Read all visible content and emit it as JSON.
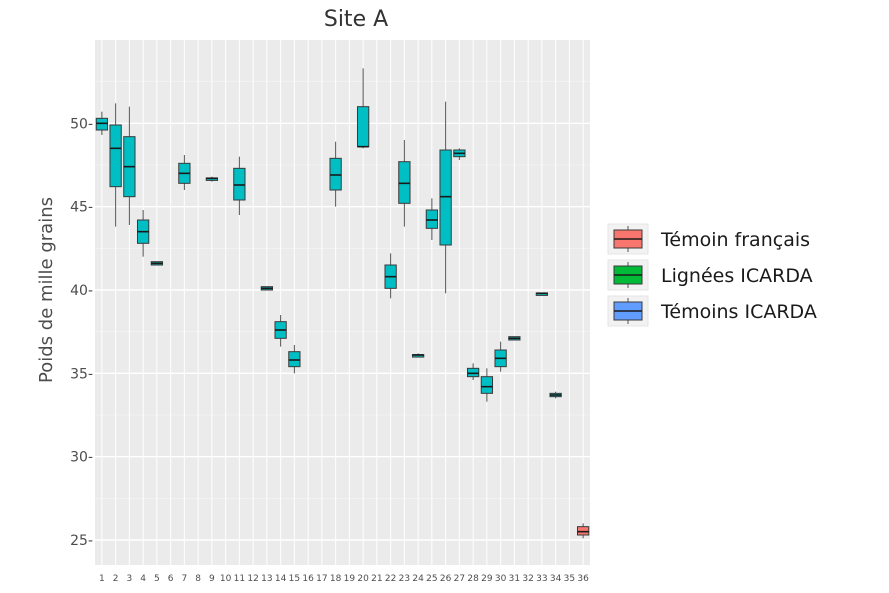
{
  "chart_data": {
    "type": "boxplot",
    "title": "Site A",
    "xlabel": "",
    "ylabel": "Poids de mille grains",
    "ylim": [
      23.5,
      55
    ],
    "yticks": [
      25,
      30,
      35,
      40,
      45,
      50
    ],
    "ytick_labels": [
      "25-",
      "30-",
      "35-",
      "40-",
      "45-",
      "50-"
    ],
    "grid": true,
    "legend_position": "right",
    "legend": [
      {
        "label": "Témoin français",
        "color": "#f8766d"
      },
      {
        "label": "Lignées ICARDA",
        "color": "#00ba38"
      },
      {
        "label": "Témoins ICARDA",
        "color": "#619cff"
      }
    ],
    "colors": {
      "lignees": "#00bfc4",
      "temoin_francais": "#f8766d",
      "panel": "#ebebeb",
      "grid": "#ffffff"
    },
    "categories": [
      "1",
      "2",
      "3",
      "4",
      "5",
      "6",
      "7",
      "8",
      "9",
      "10",
      "11",
      "12",
      "13",
      "14",
      "15",
      "16",
      "17",
      "18",
      "19",
      "20",
      "21",
      "22",
      "23",
      "24",
      "25",
      "26",
      "27",
      "28",
      "29",
      "30",
      "31",
      "32",
      "33",
      "34",
      "35",
      "36"
    ],
    "series": [
      {
        "name": "Lignées ICARDA",
        "boxes": [
          {
            "x": "1",
            "min": 49.3,
            "q1": 49.6,
            "median": 50.0,
            "q3": 50.3,
            "max": 50.7
          },
          {
            "x": "2",
            "min": 43.8,
            "q1": 46.2,
            "median": 48.5,
            "q3": 49.9,
            "max": 51.2
          },
          {
            "x": "3",
            "min": 43.9,
            "q1": 45.6,
            "median": 47.4,
            "q3": 49.2,
            "max": 51.0
          },
          {
            "x": "4",
            "min": 42.0,
            "q1": 42.8,
            "median": 43.5,
            "q3": 44.2,
            "max": 44.8
          },
          {
            "x": "5",
            "min": 41.5,
            "q1": 41.5,
            "median": 41.6,
            "q3": 41.7,
            "max": 41.7
          },
          {
            "x": "7",
            "min": 46.0,
            "q1": 46.4,
            "median": 47.0,
            "q3": 47.6,
            "max": 48.1
          },
          {
            "x": "9",
            "min": 46.5,
            "q1": 46.6,
            "median": 46.7,
            "q3": 46.7,
            "max": 46.8
          },
          {
            "x": "11",
            "min": 44.5,
            "q1": 45.4,
            "median": 46.3,
            "q3": 47.3,
            "max": 48.0
          },
          {
            "x": "13",
            "min": 40.0,
            "q1": 40.0,
            "median": 40.1,
            "q3": 40.2,
            "max": 40.2
          },
          {
            "x": "14",
            "min": 36.6,
            "q1": 37.1,
            "median": 37.6,
            "q3": 38.1,
            "max": 38.5
          },
          {
            "x": "15",
            "min": 35.0,
            "q1": 35.4,
            "median": 35.8,
            "q3": 36.3,
            "max": 36.7
          },
          {
            "x": "18",
            "min": 45.0,
            "q1": 46.0,
            "median": 46.9,
            "q3": 47.9,
            "max": 48.9
          },
          {
            "x": "20",
            "min": 48.5,
            "q1": 48.6,
            "median": 48.6,
            "q3": 51.0,
            "max": 53.3
          },
          {
            "x": "22",
            "min": 39.5,
            "q1": 40.1,
            "median": 40.8,
            "q3": 41.5,
            "max": 42.2
          },
          {
            "x": "23",
            "min": 43.8,
            "q1": 45.2,
            "median": 46.4,
            "q3": 47.7,
            "max": 49.0
          },
          {
            "x": "24",
            "min": 36.0,
            "q1": 36.0,
            "median": 36.1,
            "q3": 36.1,
            "max": 36.2
          },
          {
            "x": "25",
            "min": 43.0,
            "q1": 43.7,
            "median": 44.2,
            "q3": 44.8,
            "max": 45.5
          },
          {
            "x": "26",
            "min": 39.8,
            "q1": 42.7,
            "median": 45.6,
            "q3": 48.4,
            "max": 51.3
          },
          {
            "x": "27",
            "min": 47.8,
            "q1": 48.0,
            "median": 48.2,
            "q3": 48.4,
            "max": 48.5
          },
          {
            "x": "28",
            "min": 34.6,
            "q1": 34.8,
            "median": 35.0,
            "q3": 35.3,
            "max": 35.6
          },
          {
            "x": "29",
            "min": 33.3,
            "q1": 33.8,
            "median": 34.2,
            "q3": 34.8,
            "max": 35.3
          },
          {
            "x": "30",
            "min": 35.1,
            "q1": 35.4,
            "median": 35.9,
            "q3": 36.4,
            "max": 36.9
          },
          {
            "x": "31",
            "min": 37.0,
            "q1": 37.0,
            "median": 37.1,
            "q3": 37.2,
            "max": 37.2
          },
          {
            "x": "33",
            "min": 39.7,
            "q1": 39.7,
            "median": 39.8,
            "q3": 39.8,
            "max": 39.8
          },
          {
            "x": "34",
            "min": 33.5,
            "q1": 33.6,
            "median": 33.7,
            "q3": 33.8,
            "max": 33.9
          }
        ]
      },
      {
        "name": "Témoin français",
        "boxes": [
          {
            "x": "36",
            "min": 25.1,
            "q1": 25.3,
            "median": 25.5,
            "q3": 25.8,
            "max": 26.0
          }
        ]
      }
    ]
  }
}
